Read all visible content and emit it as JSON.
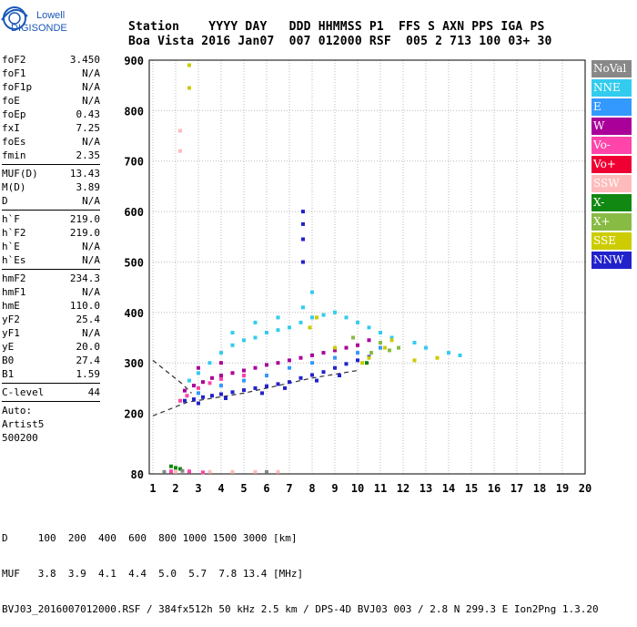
{
  "logo": {
    "line1": "Lowell",
    "line2": "DIGISONDE"
  },
  "header": {
    "line1": "Station    YYYY DAY   DDD HHMMSS P1  FFS S AXN PPS IGA PS",
    "line2": "Boa Vista 2016 Jan07  007 012000 RSF  005 2 713 100 03+ 30"
  },
  "params": {
    "group1": [
      {
        "name": "foF2",
        "value": "3.450"
      },
      {
        "name": "foF1",
        "value": "N/A"
      },
      {
        "name": "foF1p",
        "value": "N/A"
      },
      {
        "name": "foE",
        "value": "N/A"
      },
      {
        "name": "foEp",
        "value": "0.43"
      },
      {
        "name": "fxI",
        "value": "7.25"
      },
      {
        "name": "foEs",
        "value": "N/A"
      },
      {
        "name": "fmin",
        "value": "2.35"
      }
    ],
    "group2": [
      {
        "name": "MUF(D)",
        "value": "13.43"
      },
      {
        "name": "M(D)",
        "value": "3.89"
      },
      {
        "name": "D",
        "value": "N/A"
      }
    ],
    "group3": [
      {
        "name": "h`F",
        "value": "219.0"
      },
      {
        "name": "h`F2",
        "value": "219.0"
      },
      {
        "name": "h`E",
        "value": "N/A"
      },
      {
        "name": "h`Es",
        "value": "N/A"
      }
    ],
    "group4": [
      {
        "name": "hmF2",
        "value": "234.3"
      },
      {
        "name": "hmF1",
        "value": "N/A"
      },
      {
        "name": "hmE",
        "value": "110.0"
      },
      {
        "name": "yF2",
        "value": "25.4"
      },
      {
        "name": "yF1",
        "value": "N/A"
      },
      {
        "name": "yE",
        "value": "20.0"
      },
      {
        "name": "B0",
        "value": "27.4"
      },
      {
        "name": "B1",
        "value": "1.59"
      }
    ],
    "group5": [
      {
        "name": "C-level",
        "value": "44"
      }
    ],
    "notes": [
      "Auto:",
      "Artist5",
      "500200"
    ]
  },
  "legend": [
    {
      "label": "NoVal",
      "color": "#888888"
    },
    {
      "label": "NNE",
      "color": "#33ccee"
    },
    {
      "label": "E",
      "color": "#3399ff"
    },
    {
      "label": "W",
      "color": "#aa0099"
    },
    {
      "label": "Vo-",
      "color": "#ff44aa"
    },
    {
      "label": "Vo+",
      "color": "#ee0033"
    },
    {
      "label": "SSW",
      "color": "#ffbbbb"
    },
    {
      "label": "X-",
      "color": "#118811"
    },
    {
      "label": "X+",
      "color": "#88bb44"
    },
    {
      "label": "SSE",
      "color": "#cccc00"
    },
    {
      "label": "NNW",
      "color": "#2222cc"
    }
  ],
  "footer": {
    "line1": "D     100  200  400  600  800 1000 1500 3000 [km]",
    "line2": "MUF   3.8  3.9  4.1  4.4  5.0  5.7  7.8 13.4 [MHz]",
    "line3": "BVJ03_2016007012000.RSF / 384fx512h 50 kHz 2.5 km / DPS-4D BVJ03 003 / 2.8 N 299.3 E Ion2Png 1.3.20"
  },
  "chart_data": {
    "type": "scatter",
    "xlim": [
      1,
      20
    ],
    "ylim": [
      80,
      900
    ],
    "x_ticks": [
      1,
      2,
      3,
      4,
      5,
      6,
      7,
      8,
      9,
      10,
      11,
      12,
      13,
      14,
      15,
      16,
      17,
      18,
      19,
      20
    ],
    "y_ticks": [
      80,
      200,
      300,
      400,
      500,
      600,
      700,
      800,
      900
    ],
    "grid": true,
    "series": [
      {
        "name": "NNW",
        "color": "#2222cc",
        "points": [
          [
            2.4,
            225
          ],
          [
            2.8,
            228
          ],
          [
            3.2,
            232
          ],
          [
            3.6,
            235
          ],
          [
            4.0,
            238
          ],
          [
            4.5,
            242
          ],
          [
            5.0,
            246
          ],
          [
            5.5,
            250
          ],
          [
            6.0,
            254
          ],
          [
            6.5,
            258
          ],
          [
            7.0,
            262
          ],
          [
            7.5,
            270
          ],
          [
            8.0,
            276
          ],
          [
            8.5,
            282
          ],
          [
            9.0,
            290
          ],
          [
            9.5,
            298
          ],
          [
            10.0,
            305
          ],
          [
            10.5,
            312
          ],
          [
            7.6,
            600
          ],
          [
            7.6,
            575
          ],
          [
            7.6,
            545
          ],
          [
            7.6,
            500
          ],
          [
            3.0,
            220
          ],
          [
            4.2,
            230
          ],
          [
            5.8,
            240
          ],
          [
            6.8,
            250
          ],
          [
            8.2,
            265
          ],
          [
            9.2,
            275
          ]
        ]
      },
      {
        "name": "W",
        "color": "#aa0099",
        "points": [
          [
            2.4,
            245
          ],
          [
            2.8,
            255
          ],
          [
            3.2,
            262
          ],
          [
            3.6,
            270
          ],
          [
            4.0,
            275
          ],
          [
            4.5,
            280
          ],
          [
            5.0,
            285
          ],
          [
            5.5,
            290
          ],
          [
            6.0,
            296
          ],
          [
            6.5,
            300
          ],
          [
            7.0,
            305
          ],
          [
            7.5,
            310
          ],
          [
            8.0,
            315
          ],
          [
            8.5,
            320
          ],
          [
            9.0,
            325
          ],
          [
            9.5,
            330
          ],
          [
            10.0,
            335
          ],
          [
            10.5,
            345
          ],
          [
            3.0,
            290
          ],
          [
            4.0,
            300
          ]
        ]
      },
      {
        "name": "NNE",
        "color": "#33ccee",
        "points": [
          [
            2.6,
            265
          ],
          [
            3.0,
            280
          ],
          [
            3.5,
            300
          ],
          [
            4.0,
            320
          ],
          [
            4.5,
            335
          ],
          [
            5.0,
            345
          ],
          [
            5.5,
            350
          ],
          [
            6.0,
            360
          ],
          [
            6.5,
            365
          ],
          [
            7.0,
            370
          ],
          [
            7.5,
            380
          ],
          [
            8.0,
            390
          ],
          [
            8.5,
            395
          ],
          [
            9.0,
            400
          ],
          [
            9.5,
            390
          ],
          [
            10.0,
            380
          ],
          [
            10.5,
            370
          ],
          [
            11.0,
            360
          ],
          [
            11.5,
            350
          ],
          [
            12.5,
            340
          ],
          [
            13.0,
            330
          ],
          [
            14.0,
            320
          ],
          [
            14.5,
            315
          ],
          [
            8.0,
            440
          ],
          [
            7.6,
            410
          ],
          [
            4.5,
            360
          ],
          [
            5.5,
            380
          ],
          [
            6.5,
            390
          ]
        ]
      },
      {
        "name": "E",
        "color": "#3399ff",
        "points": [
          [
            3.0,
            240
          ],
          [
            4.0,
            255
          ],
          [
            5.0,
            265
          ],
          [
            6.0,
            275
          ],
          [
            7.0,
            290
          ],
          [
            8.0,
            300
          ],
          [
            9.0,
            310
          ],
          [
            10.0,
            320
          ],
          [
            11.0,
            330
          ]
        ]
      },
      {
        "name": "SSE",
        "color": "#cccc00",
        "points": [
          [
            8.2,
            390
          ],
          [
            9.0,
            330
          ],
          [
            10.5,
            310
          ],
          [
            11.2,
            330
          ],
          [
            11.5,
            345
          ],
          [
            12.5,
            305
          ],
          [
            13.5,
            310
          ],
          [
            2.6,
            890
          ],
          [
            2.6,
            845
          ],
          [
            7.9,
            370
          ],
          [
            10.2,
            300
          ]
        ]
      },
      {
        "name": "X+",
        "color": "#88bb44",
        "points": [
          [
            10.6,
            320
          ],
          [
            11.0,
            340
          ],
          [
            11.4,
            325
          ],
          [
            11.8,
            330
          ],
          [
            9.8,
            350
          ]
        ]
      },
      {
        "name": "X-",
        "color": "#118811",
        "points": [
          [
            1.8,
            95
          ],
          [
            2.0,
            92
          ],
          [
            2.2,
            90
          ],
          [
            10.4,
            300
          ]
        ]
      },
      {
        "name": "Vo-",
        "color": "#ff44aa",
        "points": [
          [
            2.2,
            225
          ],
          [
            2.5,
            235
          ],
          [
            3.0,
            250
          ],
          [
            3.5,
            260
          ],
          [
            4.0,
            268
          ],
          [
            5.0,
            275
          ],
          [
            1.8,
            85
          ],
          [
            2.6,
            85
          ],
          [
            3.2,
            83
          ]
        ]
      },
      {
        "name": "SSW",
        "color": "#ffbbbb",
        "points": [
          [
            2.0,
            84
          ],
          [
            3.5,
            84
          ],
          [
            4.5,
            84
          ],
          [
            5.5,
            84
          ],
          [
            6.5,
            84
          ],
          [
            2.2,
            720
          ],
          [
            2.2,
            760
          ]
        ]
      },
      {
        "name": "NoVal",
        "color": "#888888",
        "points": [
          [
            1.5,
            84
          ],
          [
            2.3,
            86
          ],
          [
            6.0,
            84
          ]
        ]
      }
    ],
    "dashed_lines": [
      {
        "points": [
          [
            1,
            195
          ],
          [
            2.5,
            222
          ],
          [
            5,
            240
          ],
          [
            8,
            270
          ],
          [
            10,
            285
          ]
        ]
      },
      {
        "points": [
          [
            1,
            305
          ],
          [
            2.3,
            258
          ],
          [
            2.7,
            240
          ]
        ]
      }
    ]
  }
}
